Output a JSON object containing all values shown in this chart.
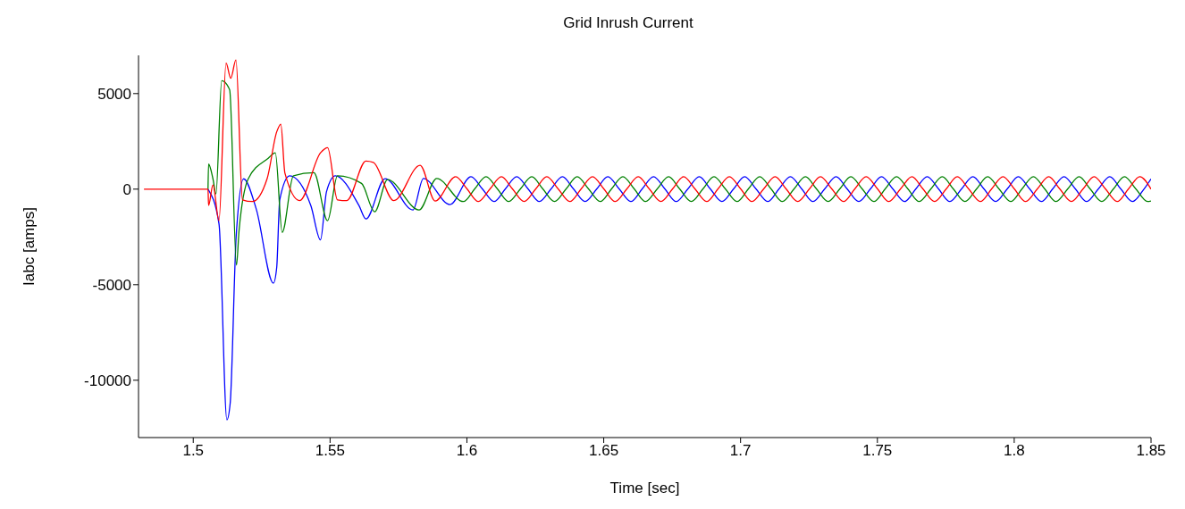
{
  "chart_data": {
    "type": "line",
    "title": "Grid Inrush Current",
    "xlabel": "Time [sec]",
    "ylabel": "Iabc [amps]",
    "xlim": [
      1.48,
      1.85
    ],
    "xticks": [
      1.5,
      1.55,
      1.6,
      1.65,
      1.7,
      1.75,
      1.8,
      1.85
    ],
    "ylim": [
      -13000,
      7000
    ],
    "yticks": [
      -10000,
      -5000,
      0,
      5000
    ],
    "grid": false,
    "legend": false,
    "marker": "none",
    "line_style": "solid",
    "series": [
      {
        "color": "#0000ff",
        "x": [
          1.5054,
          1.5094,
          1.5123,
          1.5135,
          1.5157,
          1.5184,
          1.523,
          1.5293,
          1.5305,
          1.5316,
          1.5352,
          1.543,
          1.5465,
          1.5487,
          1.5519,
          1.5606,
          1.5631,
          1.5701,
          1.5803,
          1.5841,
          1.5938,
          1.6015,
          1.6057,
          1.6099,
          1.614,
          1.6182,
          1.6224,
          1.6265,
          1.6307,
          1.6349,
          1.639,
          1.6432,
          1.6474,
          1.6515,
          1.6557,
          1.6599,
          1.664,
          1.6682,
          1.6724,
          1.6765,
          1.6807,
          1.6849,
          1.689,
          1.6932,
          1.6974,
          1.7015,
          1.7057,
          1.7099,
          1.714,
          1.7182,
          1.7224,
          1.7265,
          1.7307,
          1.7349,
          1.739,
          1.7432,
          1.7474,
          1.7515,
          1.7557,
          1.7599,
          1.764,
          1.7682,
          1.7724,
          1.7765,
          1.7807,
          1.7849,
          1.789,
          1.7932,
          1.7974,
          1.8015,
          1.8057,
          1.8099,
          1.814,
          1.8182,
          1.8224,
          1.8265,
          1.8307,
          1.8349,
          1.839,
          1.8432,
          1.8474,
          1.85
        ],
        "values": [
          0,
          -1800,
          -12070,
          -11200,
          -2430,
          540,
          -1030,
          -4920,
          -4100,
          -560,
          700,
          -870,
          -2660,
          -130,
          700,
          -870,
          -1560,
          550,
          -1090,
          560,
          -810,
          650,
          0,
          -650,
          0,
          650,
          0,
          -650,
          0,
          650,
          0,
          -650,
          0,
          650,
          0,
          -650,
          0,
          650,
          0,
          -650,
          0,
          650,
          0,
          -650,
          0,
          650,
          0,
          -650,
          0,
          650,
          0,
          -650,
          0,
          650,
          0,
          -650,
          0,
          650,
          0,
          -650,
          0,
          650,
          0,
          -650,
          0,
          650,
          0,
          -650,
          0,
          650,
          0,
          -650,
          0,
          650,
          0,
          -650,
          0,
          650,
          0,
          -650,
          0,
          540
        ]
      },
      {
        "color": "#008000",
        "x": [
          1.5054,
          1.5056,
          1.5072,
          1.5083,
          1.5104,
          1.5133,
          1.5158,
          1.5167,
          1.5201,
          1.5274,
          1.53,
          1.5325,
          1.5366,
          1.5441,
          1.5491,
          1.5527,
          1.5615,
          1.5663,
          1.571,
          1.5825,
          1.589,
          1.5987,
          1.6028,
          1.607,
          1.6112,
          1.6153,
          1.6195,
          1.6237,
          1.6278,
          1.632,
          1.6362,
          1.6403,
          1.6445,
          1.6487,
          1.6528,
          1.657,
          1.6612,
          1.6653,
          1.6695,
          1.6737,
          1.6778,
          1.682,
          1.6862,
          1.6903,
          1.6945,
          1.6987,
          1.7028,
          1.707,
          1.7112,
          1.7153,
          1.7195,
          1.7237,
          1.7278,
          1.732,
          1.7362,
          1.7403,
          1.7445,
          1.7487,
          1.7528,
          1.757,
          1.7612,
          1.7653,
          1.7695,
          1.7737,
          1.7778,
          1.782,
          1.7862,
          1.7903,
          1.7945,
          1.7987,
          1.8028,
          1.807,
          1.8112,
          1.8153,
          1.8195,
          1.8237,
          1.8278,
          1.832,
          1.8362,
          1.8403,
          1.8445,
          1.8487,
          1.85
        ],
        "values": [
          0,
          1310,
          540,
          -250,
          5670,
          5200,
          -3980,
          -2240,
          540,
          1620,
          1900,
          -2260,
          700,
          860,
          -1650,
          700,
          300,
          -1180,
          500,
          -1090,
          560,
          -650,
          0,
          650,
          0,
          -650,
          0,
          650,
          0,
          -650,
          0,
          650,
          0,
          -650,
          0,
          650,
          0,
          -650,
          0,
          650,
          0,
          -650,
          0,
          650,
          0,
          -650,
          0,
          650,
          0,
          -650,
          0,
          650,
          0,
          -650,
          0,
          650,
          0,
          -650,
          0,
          650,
          0,
          -650,
          0,
          650,
          0,
          -650,
          0,
          650,
          0,
          -650,
          0,
          650,
          0,
          -650,
          0,
          650,
          0,
          -650,
          0,
          650,
          0,
          -650,
          -620
        ]
      },
      {
        "color": "#ff0000",
        "x": [
          1.482,
          1.5054,
          1.5056,
          1.5072,
          1.5094,
          1.512,
          1.5137,
          1.5156,
          1.518,
          1.5216,
          1.527,
          1.5305,
          1.532,
          1.5335,
          1.5389,
          1.5465,
          1.5491,
          1.5527,
          1.5561,
          1.5631,
          1.5658,
          1.5733,
          1.5829,
          1.5884,
          1.5959,
          1.6001,
          1.6042,
          1.6084,
          1.6126,
          1.6167,
          1.6209,
          1.6251,
          1.6292,
          1.6334,
          1.6376,
          1.6417,
          1.6459,
          1.6501,
          1.6542,
          1.6584,
          1.6626,
          1.6667,
          1.6709,
          1.6751,
          1.6792,
          1.6834,
          1.6876,
          1.6917,
          1.6959,
          1.7001,
          1.7042,
          1.7084,
          1.7126,
          1.7167,
          1.7209,
          1.7251,
          1.7292,
          1.7334,
          1.7376,
          1.7417,
          1.7459,
          1.7501,
          1.7542,
          1.7584,
          1.7626,
          1.7667,
          1.7709,
          1.7751,
          1.7792,
          1.7834,
          1.7876,
          1.7917,
          1.7959,
          1.8001,
          1.8042,
          1.8084,
          1.8126,
          1.8167,
          1.8209,
          1.8251,
          1.8292,
          1.8334,
          1.8376,
          1.8417,
          1.8459,
          1.85
        ],
        "values": [
          0,
          0,
          -850,
          220,
          -1650,
          6600,
          5800,
          6760,
          -560,
          -650,
          550,
          3000,
          3400,
          840,
          -600,
          1900,
          2170,
          -560,
          -600,
          1470,
          1400,
          -600,
          1250,
          -620,
          650,
          0,
          -650,
          0,
          650,
          0,
          -650,
          0,
          650,
          0,
          -650,
          0,
          650,
          0,
          -650,
          0,
          650,
          0,
          -650,
          0,
          650,
          0,
          -650,
          0,
          650,
          0,
          -650,
          0,
          650,
          0,
          -650,
          0,
          650,
          0,
          -650,
          0,
          650,
          0,
          -650,
          0,
          650,
          0,
          -650,
          0,
          650,
          0,
          -650,
          0,
          650,
          0,
          -650,
          0,
          650,
          0,
          -650,
          0,
          650,
          0,
          -650,
          0,
          650,
          0
        ]
      }
    ]
  }
}
